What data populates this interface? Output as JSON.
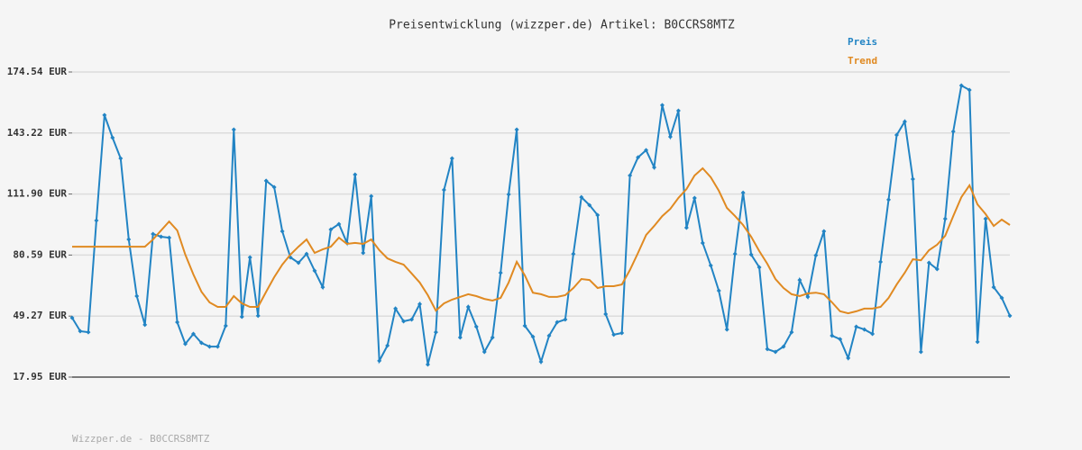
{
  "chart_data": {
    "type": "line",
    "title": "Preisentwicklung (wizzper.de) Artikel: B0CCRS8MTZ",
    "footer": "Wizzper.de - B0CCRS8MTZ",
    "ylim": [
      17.95,
      174.54
    ],
    "yticks": [
      {
        "value": 17.95,
        "label": "17.95 EUR"
      },
      {
        "value": 49.27,
        "label": "49.27 EUR"
      },
      {
        "value": 80.59,
        "label": "80.59 EUR"
      },
      {
        "value": 111.9,
        "label": "111.90 EUR"
      },
      {
        "value": 143.22,
        "label": "143.22 EUR"
      },
      {
        "value": 174.54,
        "label": "174.54 EUR"
      }
    ],
    "grid": true,
    "series": [
      {
        "name": "Preis",
        "color": "#2284c4",
        "markers": true,
        "values": [
          48.4,
          41.5,
          41.0,
          98.3,
          152.4,
          140.8,
          130.2,
          88.6,
          59.5,
          44.8,
          91.4,
          90.0,
          89.5,
          46.1,
          35.0,
          40.1,
          35.5,
          33.6,
          33.6,
          44.3,
          145.0,
          48.9,
          79.4,
          49.4,
          118.7,
          115.4,
          92.8,
          79.4,
          76.6,
          81.2,
          72.5,
          64.1,
          93.7,
          96.5,
          86.8,
          121.9,
          81.7,
          110.8,
          26.3,
          34.1,
          53.1,
          46.6,
          47.5,
          55.4,
          24.4,
          41.0,
          114.0,
          130.2,
          38.3,
          54.0,
          43.8,
          30.9,
          38.3,
          71.5,
          111.7,
          145.0,
          44.3,
          38.7,
          25.8,
          39.2,
          46.1,
          47.5,
          81.2,
          110.3,
          106.2,
          101.1,
          50.3,
          39.7,
          40.6,
          121.4,
          130.7,
          134.4,
          125.6,
          157.5,
          141.3,
          154.7,
          94.6,
          109.9,
          86.8,
          75.2,
          62.3,
          42.4,
          81.2,
          112.6,
          80.8,
          74.3,
          32.3,
          30.9,
          33.6,
          41.0,
          67.8,
          59.1,
          80.4,
          92.8,
          39.2,
          37.4,
          27.7,
          43.8,
          42.4,
          40.1,
          77.1,
          109.0,
          142.2,
          149.1,
          119.6,
          30.9,
          76.6,
          73.4,
          99.2,
          144.0,
          167.6,
          165.3,
          36.0,
          99.2,
          64.1,
          58.6,
          49.4
        ]
      },
      {
        "name": "Trend",
        "color": "#e08a22",
        "markers": false,
        "values": [
          84.9,
          84.9,
          84.9,
          84.9,
          84.9,
          84.9,
          84.9,
          84.9,
          84.9,
          84.9,
          88.6,
          93.2,
          97.8,
          93.2,
          80.8,
          70.6,
          61.8,
          56.3,
          54.0,
          54.0,
          59.5,
          55.8,
          54.0,
          54.0,
          61.8,
          69.2,
          75.7,
          80.8,
          84.9,
          88.6,
          81.7,
          83.5,
          84.9,
          89.5,
          86.3,
          86.8,
          86.3,
          88.6,
          83.1,
          78.9,
          77.1,
          75.7,
          71.1,
          66.5,
          60.0,
          52.1,
          55.8,
          57.7,
          59.1,
          60.5,
          59.5,
          58.1,
          57.2,
          58.6,
          66.5,
          77.1,
          70.1,
          61.3,
          60.5,
          59.1,
          59.1,
          60.0,
          63.7,
          68.3,
          67.8,
          63.7,
          64.6,
          64.6,
          65.5,
          72.9,
          81.7,
          90.9,
          95.5,
          100.6,
          104.3,
          109.9,
          114.5,
          121.4,
          125.1,
          120.5,
          113.6,
          104.8,
          100.6,
          96.0,
          90.0,
          82.6,
          76.1,
          68.3,
          63.7,
          60.5,
          59.5,
          60.9,
          61.3,
          60.5,
          56.3,
          51.7,
          50.7,
          51.7,
          53.1,
          53.1,
          54.0,
          58.6,
          65.5,
          71.5,
          78.4,
          77.9,
          83.1,
          85.9,
          90.5,
          100.6,
          110.3,
          116.4,
          106.6,
          101.6,
          95.5,
          98.8,
          96.0
        ]
      }
    ]
  }
}
